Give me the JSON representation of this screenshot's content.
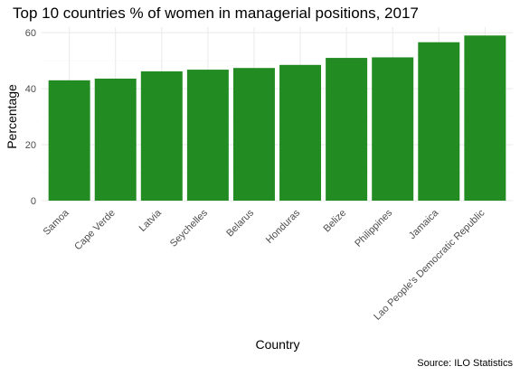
{
  "chart_data": {
    "type": "bar",
    "title": "Top 10 countries % of women in managerial positions, 2017",
    "xlabel": "Country",
    "ylabel": "Percentage",
    "caption": "Source: ILO Statistics",
    "categories": [
      "Samoa",
      "Cape Verde",
      "Latvia",
      "Seychelles",
      "Belarus",
      "Honduras",
      "Belize",
      "Philippines",
      "Jamaica",
      "Lao People's Democratic Republic"
    ],
    "values": [
      43.0,
      43.6,
      46.2,
      46.8,
      47.4,
      48.5,
      51.0,
      51.2,
      56.6,
      59.0
    ],
    "yticks": [
      0,
      20,
      40,
      60
    ],
    "ylim": [
      0,
      62
    ],
    "grid": true,
    "bar_color": "#228b22"
  }
}
